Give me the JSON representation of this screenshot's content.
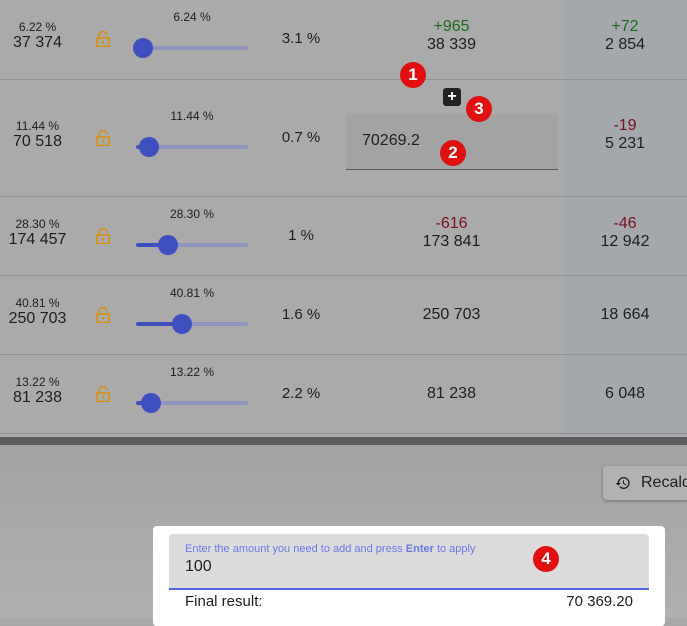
{
  "rows": [
    {
      "share_pct": "6.22 %",
      "share_value": "37 374",
      "slider_label": "6.24 %",
      "slider_value": 6.24,
      "pct": "3.1 %",
      "amount_delta": "+965",
      "amount_delta_sign": "pos",
      "amount": "38 339",
      "right_delta": "+72",
      "right_delta_sign": "pos",
      "right_value": "2 854"
    },
    {
      "share_pct": "11.44 %",
      "share_value": "70 518",
      "slider_label": "11.44 %",
      "slider_value": 11.44,
      "pct": "0.7 %",
      "amount_input": "70269.2",
      "right_delta": "-19",
      "right_delta_sign": "neg",
      "right_value": "5 231"
    },
    {
      "share_pct": "28.30 %",
      "share_value": "174 457",
      "slider_label": "28.30 %",
      "slider_value": 28.3,
      "pct": "1 %",
      "amount_delta": "-616",
      "amount_delta_sign": "neg",
      "amount": "173 841",
      "right_delta": "-46",
      "right_delta_sign": "neg",
      "right_value": "12 942"
    },
    {
      "share_pct": "40.81 %",
      "share_value": "250 703",
      "slider_label": "40.81 %",
      "slider_value": 40.81,
      "pct": "1.6 %",
      "amount": "250 703",
      "right_value": "18 664"
    },
    {
      "share_pct": "13.22 %",
      "share_value": "81 238",
      "slider_label": "13.22 %",
      "slider_value": 13.22,
      "pct": "2.2 %",
      "amount": "81 238",
      "right_value": "6 048"
    }
  ],
  "plus_button": "+",
  "badges": [
    "1",
    "2",
    "3",
    "4"
  ],
  "recalc_label": "Recalc",
  "dialog": {
    "label_pre": "Enter the amount you need to add and press ",
    "label_bold": "Enter",
    "label_post": " to apply",
    "value": "100",
    "final_label": "Final result:",
    "final_value": "70 369.20"
  },
  "colors": {
    "accent": "#3f4fc0",
    "positive": "#1c6b1c",
    "negative": "#7a1020",
    "lock": "#d9900f",
    "badge": "#e01010"
  }
}
